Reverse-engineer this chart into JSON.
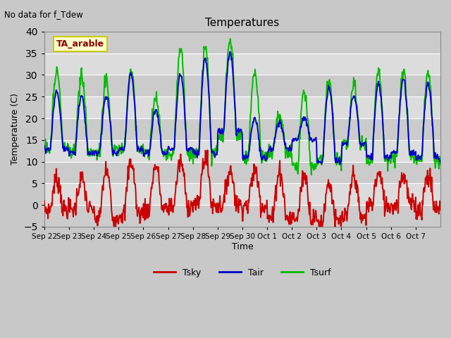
{
  "title": "Temperatures",
  "ylabel": "Temperature (C)",
  "xlabel": "Time",
  "annotation": "No data for f_Tdew",
  "field_label": "TA_arable",
  "ylim": [
    -5,
    40
  ],
  "yticks": [
    -5,
    0,
    5,
    10,
    15,
    20,
    25,
    30,
    35,
    40
  ],
  "tsky_color": "#cc0000",
  "tair_color": "#0000cc",
  "tsurf_color": "#00bb00",
  "line_width": 1.4,
  "n_days": 16,
  "x_tick_labels": [
    "Sep 22",
    "Sep 23",
    "Sep 24",
    "Sep 25",
    "Sep 26",
    "Sep 27",
    "Sep 28",
    "Sep 29",
    "Sep 30",
    "Oct 1",
    "Oct 2",
    "Oct 3",
    "Oct 4",
    "Oct 5",
    "Oct 6",
    "Oct 7"
  ],
  "tair_peaks": [
    26,
    25,
    25,
    30,
    22,
    30,
    34,
    35,
    20,
    19,
    20,
    27,
    25,
    28,
    29,
    28
  ],
  "tair_nights": [
    13,
    12,
    12,
    13,
    12,
    13,
    12,
    17,
    11,
    13,
    15,
    10,
    14,
    11,
    12,
    11
  ],
  "tsurf_peaks": [
    31,
    30,
    29,
    31,
    25,
    36,
    36,
    38,
    31,
    21,
    26,
    29,
    28,
    31,
    31,
    31
  ],
  "tsurf_nights": [
    13,
    12,
    12,
    13,
    12,
    12,
    12,
    16,
    11,
    12,
    9,
    10,
    14,
    10,
    11,
    10
  ],
  "tsky_peaks": [
    6,
    6,
    8,
    10,
    9,
    10,
    11,
    8,
    8,
    8,
    7,
    5,
    7,
    7,
    7,
    7
  ],
  "tsky_nights": [
    -1,
    -1,
    -3,
    -2,
    -1,
    0,
    0,
    0,
    0,
    -3,
    -3,
    -4,
    -3,
    0,
    0,
    -1
  ]
}
